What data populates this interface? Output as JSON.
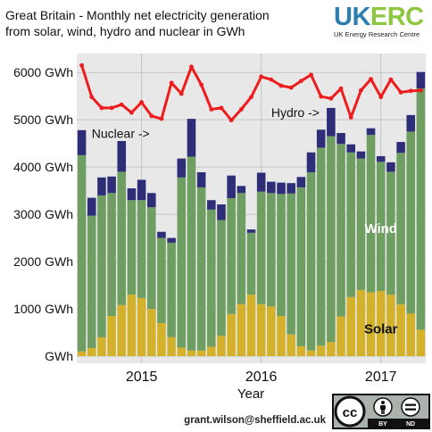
{
  "header": {
    "title_line1": "Great Britain - Monthly net electricity generation",
    "title_line2": "from solar, wind, hydro and nuclear in GWh"
  },
  "brand": {
    "logo_uk": "UK",
    "logo_erc": "ERC",
    "tagline": "UK Energy Research Centre"
  },
  "footer": {
    "email": "grant.wilson@sheffield.ac.uk",
    "license_cc": "cc",
    "license_by": "BY",
    "license_nd": "ND"
  },
  "colors": {
    "solar": "#d4b12a",
    "wind": "#6f9e62",
    "hydro": "#2e2d78",
    "nuclear": "#ee1c1c",
    "plot_bg": "#e8e8e8",
    "grid": "#c4c4c4",
    "brand_blue": "#2c7fb0",
    "brand_green": "#8dc63f"
  },
  "chart_data": {
    "type": "bar",
    "stacked": true,
    "title": "Great Britain - Monthly net electricity generation from solar, wind, hydro and nuclear in GWh",
    "xlabel": "Year",
    "ylabel": "",
    "y_unit_suffix": " GWh",
    "ylim": [
      -150,
      6400
    ],
    "y_ticks": [
      0,
      1000,
      2000,
      3000,
      4000,
      5000,
      6000
    ],
    "y_tick_labels": [
      "GWh",
      "1000 GWh",
      "2000 GWh",
      "3000 GWh",
      "4000 GWh",
      "5000 GWh",
      "6000 GWh"
    ],
    "x_year_labels": [
      {
        "label": "2015",
        "month_index": 6
      },
      {
        "label": "2016",
        "month_index": 18
      },
      {
        "label": "2017",
        "month_index": 30
      }
    ],
    "grid": true,
    "series_labels": [
      {
        "name": "Nuclear ->",
        "series": "nuclear"
      },
      {
        "name": "Hydro ->",
        "series": "hydro"
      },
      {
        "name": "Wind",
        "series": "wind"
      },
      {
        "name": "Solar",
        "series": "solar"
      }
    ],
    "series": [
      {
        "name": "Solar",
        "key": "solar",
        "values": [
          100,
          170,
          400,
          850,
          1080,
          1300,
          1230,
          1000,
          700,
          400,
          180,
          120,
          120,
          200,
          430,
          890,
          1100,
          1300,
          1100,
          1050,
          850,
          460,
          210,
          120,
          220,
          300,
          840,
          1250,
          1400,
          1350,
          1380,
          1300,
          1100,
          900,
          560
        ]
      },
      {
        "name": "Wind",
        "key": "wind",
        "values": [
          4150,
          2800,
          3000,
          2600,
          2820,
          2000,
          2070,
          2150,
          1800,
          2000,
          3600,
          4100,
          3450,
          2900,
          2450,
          2450,
          2350,
          1310,
          2380,
          2400,
          2580,
          2980,
          3360,
          3770,
          4190,
          4350,
          3650,
          3060,
          2780,
          3330,
          2730,
          2600,
          3200,
          3850,
          5100
        ]
      },
      {
        "name": "Hydro",
        "key": "hydro",
        "values": [
          530,
          380,
          380,
          350,
          650,
          250,
          430,
          300,
          130,
          100,
          400,
          800,
          320,
          200,
          330,
          480,
          150,
          70,
          400,
          240,
          240,
          220,
          220,
          420,
          380,
          600,
          230,
          170,
          150,
          140,
          120,
          200,
          230,
          350,
          350
        ]
      },
      {
        "name": "Nuclear",
        "key": "nuclear",
        "type": "line",
        "values": [
          6150,
          5480,
          5250,
          5250,
          5320,
          5150,
          5370,
          5080,
          5020,
          5780,
          5550,
          6120,
          5740,
          5220,
          5250,
          4990,
          5220,
          5480,
          5910,
          5850,
          5720,
          5680,
          5820,
          5950,
          5490,
          5450,
          5660,
          5050,
          5620,
          5860,
          5480,
          5850,
          5580,
          5610,
          5620
        ]
      }
    ]
  }
}
